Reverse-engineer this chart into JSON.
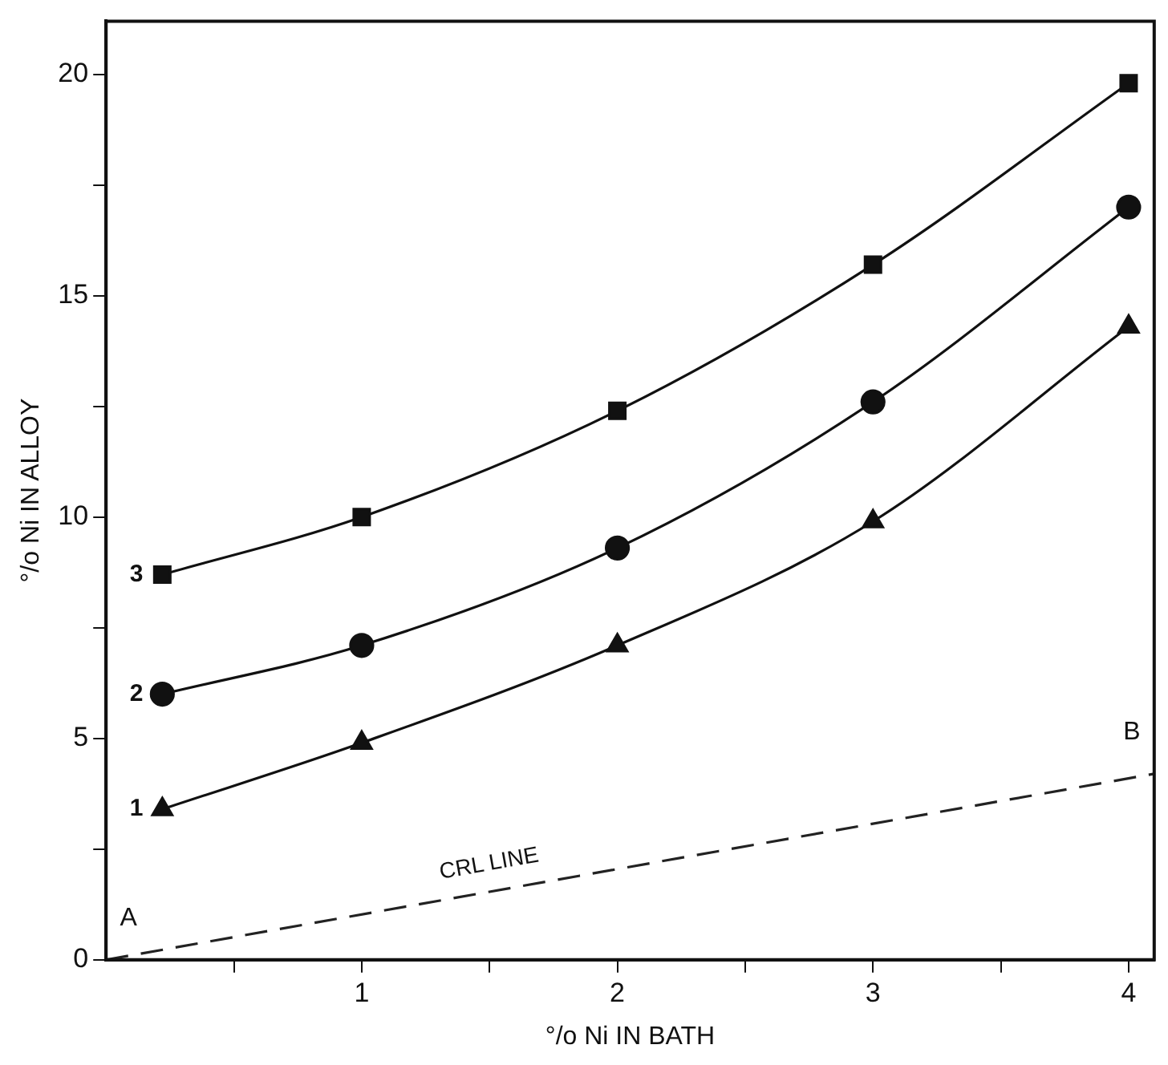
{
  "chart_data": {
    "type": "line",
    "xlabel": "°/o Ni IN BATH",
    "ylabel": "°/o Ni IN ALLOY",
    "xlim": [
      0,
      4.1
    ],
    "ylim": [
      0,
      21.2
    ],
    "xticks": [
      {
        "value": 0.5,
        "label": null
      },
      1,
      {
        "value": 1.5,
        "label": null
      },
      2,
      {
        "value": 2.5,
        "label": null
      },
      3,
      {
        "value": 3.5,
        "label": null
      },
      4
    ],
    "yticks": [
      0,
      {
        "value": 2.5,
        "label": null
      },
      5,
      {
        "value": 7.5,
        "label": null
      },
      10,
      {
        "value": 12.5,
        "label": null
      },
      15,
      {
        "value": 17.5,
        "label": null
      },
      20
    ],
    "grid": false,
    "legend": false,
    "series": [
      {
        "name": "3",
        "color": "#111111",
        "marker": "square",
        "x": [
          0.22,
          1,
          2,
          3,
          4
        ],
        "values": [
          8.7,
          10.0,
          12.4,
          15.7,
          19.8
        ]
      },
      {
        "name": "2",
        "color": "#111111",
        "marker": "circle",
        "x": [
          0.22,
          1,
          2,
          3,
          4
        ],
        "values": [
          6.0,
          7.1,
          9.3,
          12.6,
          17.0
        ]
      },
      {
        "name": "1",
        "color": "#111111",
        "marker": "triangle",
        "x": [
          0.22,
          1,
          2,
          3,
          4
        ],
        "values": [
          3.4,
          4.9,
          7.1,
          9.9,
          14.3
        ]
      },
      {
        "name": "CRL LINE",
        "color": "#222222",
        "marker": "none",
        "line_style": "dashed",
        "x": [
          0,
          4.1
        ],
        "values": [
          0,
          4.2
        ]
      }
    ],
    "annotations": [
      {
        "text": "A",
        "x": 0,
        "y": 0
      },
      {
        "text": "B",
        "x": 4.1,
        "y": 4.2
      }
    ]
  }
}
